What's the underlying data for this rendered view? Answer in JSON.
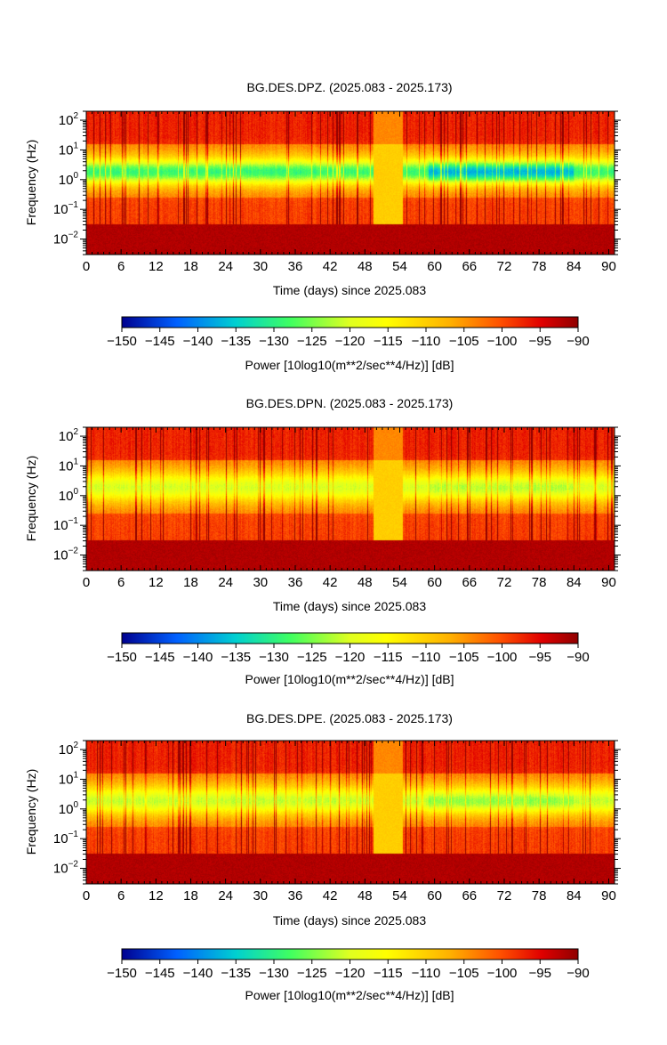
{
  "chart_data": [
    {
      "type": "heatmap",
      "title": "BG.DES.DPZ. (2025.083 - 2025.173)",
      "xlabel": "Time (days) since 2025.083",
      "ylabel": "Frequency (Hz)",
      "xlim": [
        0,
        91
      ],
      "ylim": [
        0.003,
        200
      ],
      "y_scale": "log",
      "x_ticks": [
        "0",
        "6",
        "12",
        "18",
        "24",
        "30",
        "36",
        "42",
        "48",
        "54",
        "60",
        "66",
        "72",
        "78",
        "84",
        "90"
      ],
      "y_tick_base": "10",
      "y_ticks": [
        {
          "value": 100,
          "exp": "2"
        },
        {
          "value": 10,
          "exp": "1"
        },
        {
          "value": 1,
          "exp": "0"
        },
        {
          "value": 0.1,
          "exp": "−1"
        },
        {
          "value": 0.01,
          "exp": "−2"
        }
      ],
      "colorbar": {
        "label": "Power [10log10(m**2/sec**4/Hz)] [dB]",
        "range": [
          -150,
          -90
        ],
        "ticks": [
          "−150",
          "−145",
          "−140",
          "−135",
          "−130",
          "−125",
          "−120",
          "−115",
          "−110",
          "−105",
          "−100",
          "−95",
          "−90"
        ]
      },
      "gaps": [
        [
          49.5,
          54.5
        ]
      ],
      "quiet_band_strength": 1.0
    },
    {
      "type": "heatmap",
      "title": "BG.DES.DPN. (2025.083 - 2025.173)",
      "xlabel": "Time (days) since 2025.083",
      "ylabel": "Frequency (Hz)",
      "xlim": [
        0,
        91
      ],
      "ylim": [
        0.003,
        200
      ],
      "y_scale": "log",
      "x_ticks": [
        "0",
        "6",
        "12",
        "18",
        "24",
        "30",
        "36",
        "42",
        "48",
        "54",
        "60",
        "66",
        "72",
        "78",
        "84",
        "90"
      ],
      "y_tick_base": "10",
      "y_ticks": [
        {
          "value": 100,
          "exp": "2"
        },
        {
          "value": 10,
          "exp": "1"
        },
        {
          "value": 1,
          "exp": "0"
        },
        {
          "value": 0.1,
          "exp": "−1"
        },
        {
          "value": 0.01,
          "exp": "−2"
        }
      ],
      "colorbar": {
        "label": "Power [10log10(m**2/sec**4/Hz)] [dB]",
        "range": [
          -150,
          -90
        ],
        "ticks": [
          "−150",
          "−145",
          "−140",
          "−135",
          "−130",
          "−125",
          "−120",
          "−115",
          "−110",
          "−105",
          "−100",
          "−95",
          "−90"
        ]
      },
      "gaps": [
        [
          49.5,
          54.5
        ]
      ],
      "quiet_band_strength": 0.25
    },
    {
      "type": "heatmap",
      "title": "BG.DES.DPE. (2025.083 - 2025.173)",
      "xlabel": "Time (days) since 2025.083",
      "ylabel": "Frequency (Hz)",
      "xlim": [
        0,
        91
      ],
      "ylim": [
        0.003,
        200
      ],
      "y_scale": "log",
      "x_ticks": [
        "0",
        "6",
        "12",
        "18",
        "24",
        "30",
        "36",
        "42",
        "48",
        "54",
        "60",
        "66",
        "72",
        "78",
        "84",
        "90"
      ],
      "y_tick_base": "10",
      "y_ticks": [
        {
          "value": 100,
          "exp": "2"
        },
        {
          "value": 10,
          "exp": "1"
        },
        {
          "value": 1,
          "exp": "0"
        },
        {
          "value": 0.1,
          "exp": "−1"
        },
        {
          "value": 0.01,
          "exp": "−2"
        }
      ],
      "colorbar": {
        "label": "Power [10log10(m**2/sec**4/Hz)] [dB]",
        "range": [
          -150,
          -90
        ],
        "ticks": [
          "−150",
          "−145",
          "−140",
          "−135",
          "−130",
          "−125",
          "−120",
          "−115",
          "−110",
          "−105",
          "−100",
          "−95",
          "−90"
        ]
      },
      "gaps": [
        [
          49.5,
          54.5
        ]
      ],
      "quiet_band_strength": 0.35
    }
  ]
}
